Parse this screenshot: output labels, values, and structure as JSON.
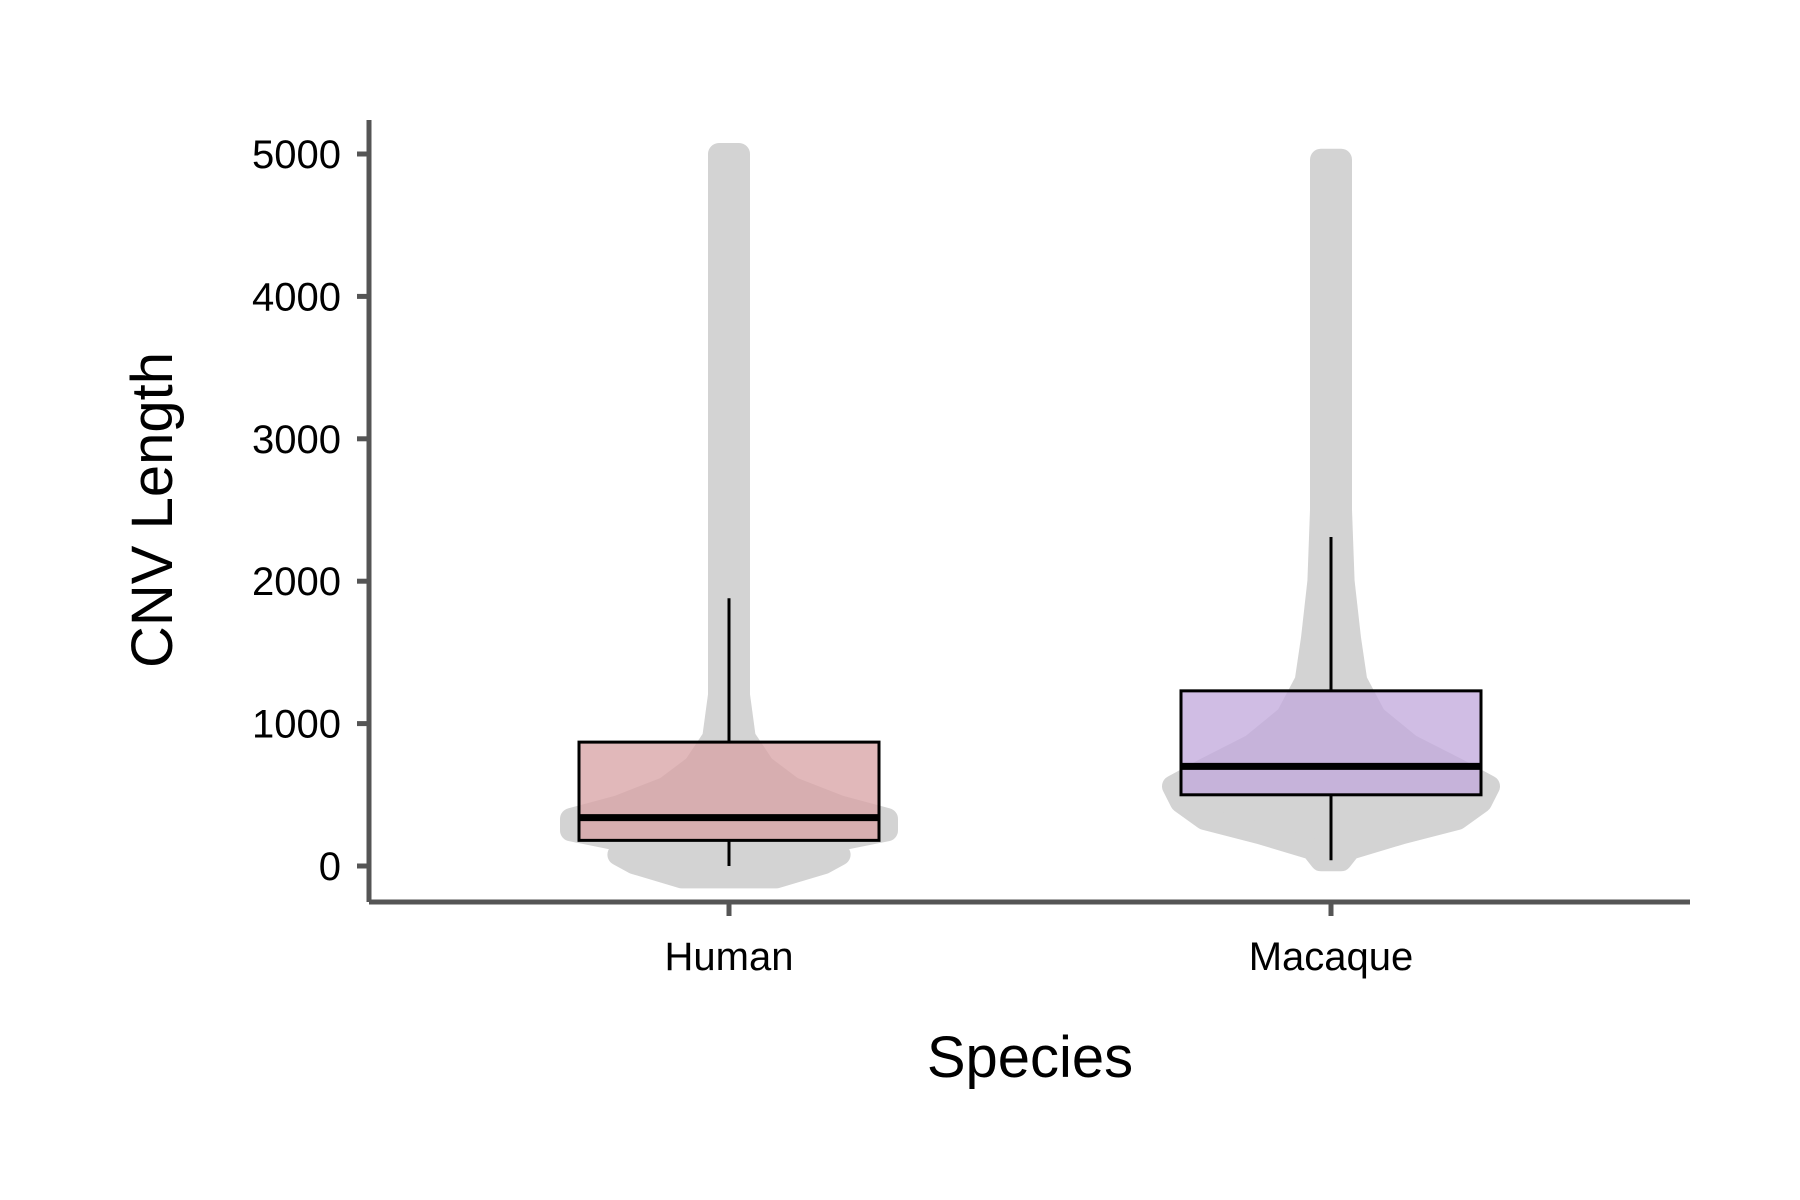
{
  "chart_data": {
    "type": "box",
    "title": "",
    "xlabel": "Species",
    "ylabel": "CNV Length",
    "ylim": [
      -230,
      5230
    ],
    "yticks": [
      0,
      1000,
      2000,
      3000,
      4000,
      5000
    ],
    "grid": false,
    "legend": "none",
    "categories": [
      "Human",
      "Macaque"
    ],
    "boxes": [
      {
        "name": "Human",
        "whisker_low": 0,
        "q1": 180,
        "median": 340,
        "q3": 870,
        "whisker_high": 1880,
        "fill": "#d8a4a6"
      },
      {
        "name": "Macaque",
        "whisker_low": 40,
        "q1": 500,
        "median": 700,
        "q3": 1230,
        "whisker_high": 2310,
        "fill": "#c3aadc"
      }
    ],
    "distributions": [
      {
        "name": "Human",
        "min": -80,
        "max": 5000,
        "profile": [
          [
            -80,
            0.3
          ],
          [
            20,
            0.6
          ],
          [
            80,
            0.7
          ],
          [
            150,
            0.55
          ],
          [
            250,
            1.0
          ],
          [
            330,
            1.0
          ],
          [
            420,
            0.7
          ],
          [
            550,
            0.4
          ],
          [
            700,
            0.22
          ],
          [
            900,
            0.1
          ],
          [
            1200,
            0.06
          ],
          [
            1600,
            0.04
          ],
          [
            2500,
            0.034
          ],
          [
            3500,
            0.03
          ],
          [
            4500,
            0.028
          ],
          [
            5000,
            0.026
          ]
        ]
      },
      {
        "name": "Macaque",
        "min": 40,
        "max": 4960,
        "profile": [
          [
            40,
            0.02
          ],
          [
            120,
            0.12
          ],
          [
            230,
            0.45
          ],
          [
            330,
            0.8
          ],
          [
            450,
            0.95
          ],
          [
            560,
            1.0
          ],
          [
            680,
            0.8
          ],
          [
            850,
            0.5
          ],
          [
            1050,
            0.28
          ],
          [
            1300,
            0.16
          ],
          [
            1600,
            0.12
          ],
          [
            2000,
            0.08
          ],
          [
            2500,
            0.05
          ],
          [
            3000,
            0.04
          ],
          [
            4000,
            0.034
          ],
          [
            4960,
            0.03
          ]
        ]
      }
    ],
    "colors": {
      "points": "#d3d3d3",
      "axis": "#555555",
      "box_outline": "#000000"
    }
  }
}
